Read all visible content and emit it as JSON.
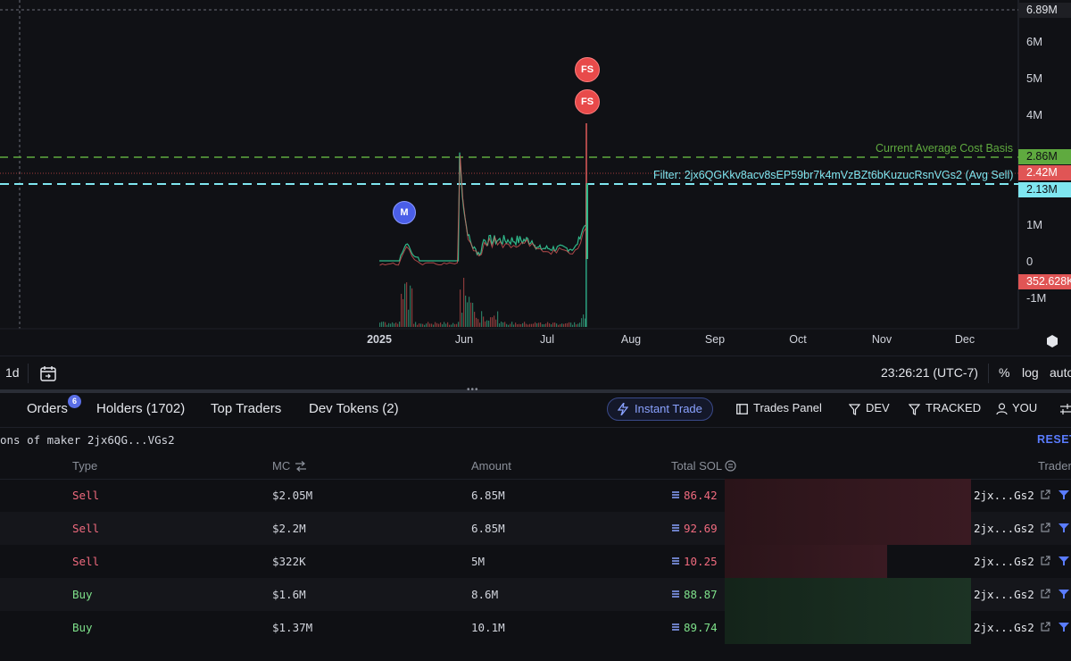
{
  "colors": {
    "background": "#0f1014",
    "cost_basis_line": "#5faa3f",
    "avg_sell_line": "#7fe6f0",
    "sell": "#ef6a7e",
    "buy": "#7ee08a",
    "accent": "#5a7cff",
    "marker_fs": "#e84a4a",
    "marker_m": "#4a5ee8"
  },
  "chart": {
    "price_tags": {
      "top": "6.89M",
      "cost_basis": "2.86M",
      "current": "2.42M",
      "avg_sell": "2.13M",
      "low": "352.628K"
    },
    "y_axis": [
      {
        "label": "6M",
        "value": 6000000
      },
      {
        "label": "5M",
        "value": 5000000
      },
      {
        "label": "4M",
        "value": 4000000
      },
      {
        "label": "1M",
        "value": 1000000
      },
      {
        "label": "0",
        "value": 0
      },
      {
        "label": "-1M",
        "value": -1000000
      }
    ],
    "x_axis": [
      "2025",
      "Jun",
      "Jul",
      "Aug",
      "Sep",
      "Oct",
      "Nov",
      "Dec"
    ],
    "cost_basis_label": "Current Average Cost Basis",
    "avg_sell_label": "Filter: 2jx6QGKkv8acv8sEP59br7k4mVzBZt6bKuzucRsnVGs2 (Avg Sell)",
    "markers": {
      "fs": "FS",
      "m": "M"
    },
    "peak_value": 3800000
  },
  "toolbar": {
    "interval": "1d",
    "calendar_icon": "calendar-icon",
    "time": "23:26:21 (UTC-7)",
    "percent": "%",
    "log": "log",
    "auto": "auto"
  },
  "tabs": {
    "orders": "Orders",
    "orders_badge": "6",
    "holders": "Holders (1702)",
    "top_traders": "Top Traders",
    "dev_tokens": "Dev Tokens (2)",
    "instant_trade": "Instant Trade",
    "trades_panel": "Trades Panel",
    "dev": "DEV",
    "tracked": "TRACKED",
    "you": "YOU"
  },
  "filter_row": {
    "text": "ons of maker 2jx6QG...VGs2",
    "reset": "RESET"
  },
  "table": {
    "headers": {
      "type": "Type",
      "mc": "MC",
      "amount": "Amount",
      "total_sol": "Total SOL",
      "trader": "Trader"
    },
    "rows": [
      {
        "type": "Sell",
        "side": "sell",
        "mc": "$2.05M",
        "amount": "6.85M",
        "total_sol": "86.42",
        "trader": "2jx...Gs2",
        "bar_fraction": 0.97
      },
      {
        "type": "Sell",
        "side": "sell",
        "mc": "$2.2M",
        "amount": "6.85M",
        "total_sol": "92.69",
        "trader": "2jx...Gs2",
        "bar_fraction": 0.97
      },
      {
        "type": "Sell",
        "side": "sell",
        "mc": "$322K",
        "amount": "5M",
        "total_sol": "10.25",
        "trader": "2jx...Gs2",
        "bar_fraction": 0.64
      },
      {
        "type": "Buy",
        "side": "buy",
        "mc": "$1.6M",
        "amount": "8.6M",
        "total_sol": "88.87",
        "trader": "2jx...Gs2",
        "bar_fraction": 0.97
      },
      {
        "type": "Buy",
        "side": "buy",
        "mc": "$1.37M",
        "amount": "10.1M",
        "total_sol": "89.74",
        "trader": "2jx...Gs2",
        "bar_fraction": 0.97
      }
    ]
  }
}
